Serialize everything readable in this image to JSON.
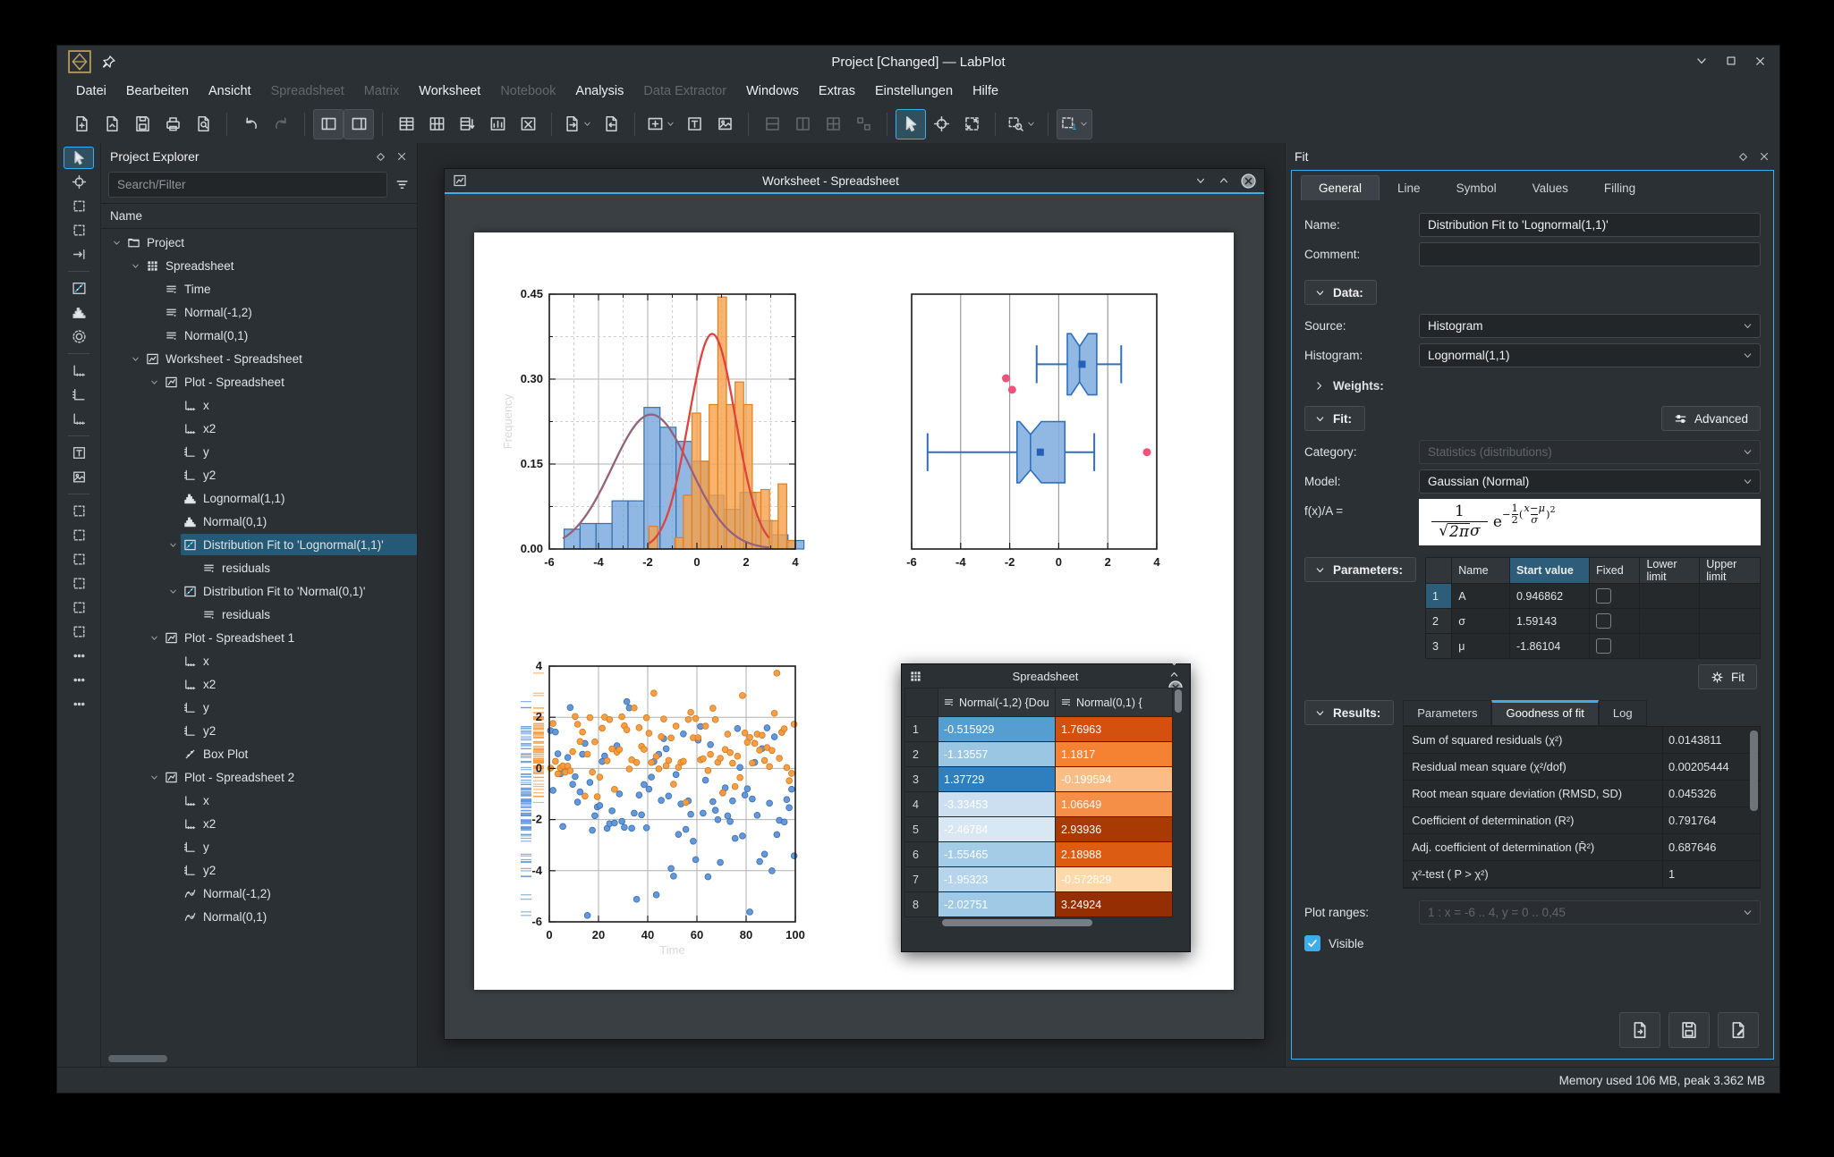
{
  "window": {
    "title": "Project [Changed] — LabPlot"
  },
  "menubar": [
    {
      "label": "Datei",
      "enabled": true
    },
    {
      "label": "Bearbeiten",
      "enabled": true
    },
    {
      "label": "Ansicht",
      "enabled": true
    },
    {
      "label": "Spreadsheet",
      "enabled": false
    },
    {
      "label": "Matrix",
      "enabled": false
    },
    {
      "label": "Worksheet",
      "enabled": true
    },
    {
      "label": "Notebook",
      "enabled": false
    },
    {
      "label": "Analysis",
      "enabled": true
    },
    {
      "label": "Data Extractor",
      "enabled": false
    },
    {
      "label": "Windows",
      "enabled": true
    },
    {
      "label": "Extras",
      "enabled": true
    },
    {
      "label": "Einstellungen",
      "enabled": true
    },
    {
      "label": "Hilfe",
      "enabled": true
    }
  ],
  "toolbar": {
    "groups": [
      [
        {
          "name": "new-project-button",
          "glyph": "doc-new"
        },
        {
          "name": "open-project-button",
          "glyph": "doc-open"
        },
        {
          "name": "save-project-button",
          "glyph": "save"
        },
        {
          "name": "print-button",
          "glyph": "print"
        },
        {
          "name": "print-preview-button",
          "glyph": "preview"
        }
      ],
      [
        {
          "name": "undo-button",
          "glyph": "undo"
        },
        {
          "name": "redo-button",
          "glyph": "redo",
          "disabled": true
        }
      ],
      [
        {
          "name": "toggle-project-explorer-button",
          "glyph": "panel-left",
          "pressed": true
        },
        {
          "name": "toggle-properties-explorer-button",
          "glyph": "panel-right",
          "pressed": true
        }
      ],
      [
        {
          "name": "spreadsheet-insert-row-button",
          "glyph": "table-row"
        },
        {
          "name": "spreadsheet-insert-column-button",
          "glyph": "table-col"
        },
        {
          "name": "spreadsheet-sort-button",
          "glyph": "table-sort"
        },
        {
          "name": "spreadsheet-statistics-button",
          "glyph": "table-stats"
        },
        {
          "name": "spreadsheet-clear-button",
          "glyph": "table-clear"
        }
      ],
      [
        {
          "name": "export-spreadsheet-button",
          "glyph": "doc-export",
          "chevron": true
        },
        {
          "name": "import-data-button",
          "glyph": "doc-import"
        }
      ],
      [
        {
          "name": "new-worksheet-button",
          "glyph": "frame-new",
          "chevron": true
        },
        {
          "name": "worksheet-text-button",
          "glyph": "frame-text"
        },
        {
          "name": "worksheet-image-button",
          "glyph": "frame-image"
        }
      ],
      [
        {
          "name": "layout-vertical-button",
          "glyph": "layout-v",
          "disabled": true
        },
        {
          "name": "layout-horizontal-button",
          "glyph": "layout-h",
          "disabled": true
        },
        {
          "name": "layout-grid-button",
          "glyph": "layout-grid",
          "disabled": true
        },
        {
          "name": "layout-break-button",
          "glyph": "layout-break",
          "disabled": true
        }
      ],
      [
        {
          "name": "select-mode-button",
          "glyph": "cursor",
          "checked": true
        },
        {
          "name": "crosshair-mode-button",
          "glyph": "target"
        },
        {
          "name": "zoom-fit-button",
          "glyph": "zoom-fit"
        }
      ],
      [
        {
          "name": "zoom-select-button",
          "glyph": "zoom-select",
          "chevron": true
        }
      ],
      [
        {
          "name": "magnification-button",
          "glyph": "mag-one",
          "pressed": true,
          "chevron": true
        }
      ]
    ]
  },
  "left_toolbar": [
    {
      "name": "select-tool",
      "glyph": "cursor",
      "checked": true
    },
    {
      "name": "crosshair-tool",
      "glyph": "target"
    },
    {
      "name": "zoom-select-tool",
      "glyph": "dashbox"
    },
    {
      "name": "zoom-x-select-tool",
      "glyph": "dashbox"
    },
    {
      "name": "navigate-tool",
      "glyph": "arrow-io",
      "sep_after": true
    },
    {
      "name": "xy-curve-tool",
      "glyph": "fitc"
    },
    {
      "name": "histogram-tool",
      "glyph": "hist"
    },
    {
      "name": "data-picker-tool",
      "glyph": "target2",
      "sep_after": true
    },
    {
      "name": "axis-bottom-tool",
      "glyph": "axis"
    },
    {
      "name": "axis-left-tool",
      "glyph": "axis-y"
    },
    {
      "name": "axis-custom-tool",
      "glyph": "axis",
      "sep_after": true
    },
    {
      "name": "text-label-tool",
      "glyph": "frame-text"
    },
    {
      "name": "image-tool",
      "glyph": "frame-image",
      "sep_after": true
    },
    {
      "name": "custom-point-tool",
      "glyph": "dashbox"
    },
    {
      "name": "reference-line-tool",
      "glyph": "dashbox"
    },
    {
      "name": "reference-range-tool",
      "glyph": "dashbox"
    },
    {
      "name": "info-element-tool",
      "glyph": "dashbox"
    },
    {
      "name": "shape-tool",
      "glyph": "dashbox"
    },
    {
      "name": "group-tool",
      "glyph": "dashbox"
    },
    {
      "name": "align-tool",
      "glyph": "dots"
    },
    {
      "name": "distribute-tool",
      "glyph": "dots"
    },
    {
      "name": "more-tools",
      "glyph": "dots"
    }
  ],
  "explorer": {
    "title": "Project Explorer",
    "search_placeholder": "Search/Filter",
    "name_header": "Name",
    "tree": [
      {
        "depth": 0,
        "icon": "folder",
        "label": "Project",
        "expandable": true
      },
      {
        "depth": 1,
        "icon": "grid",
        "label": "Spreadsheet",
        "expandable": true
      },
      {
        "depth": 2,
        "icon": "column",
        "label": "Time"
      },
      {
        "depth": 2,
        "icon": "column",
        "label": "Normal(-1,2)"
      },
      {
        "depth": 2,
        "icon": "column",
        "label": "Normal(0,1)"
      },
      {
        "depth": 1,
        "icon": "worksheet",
        "label": "Worksheet - Spreadsheet",
        "expandable": true
      },
      {
        "depth": 2,
        "icon": "plot",
        "label": "Plot - Spreadsheet",
        "expandable": true
      },
      {
        "depth": 3,
        "icon": "axis",
        "label": "x"
      },
      {
        "depth": 3,
        "icon": "axis",
        "label": "x2"
      },
      {
        "depth": 3,
        "icon": "axis-y",
        "label": "y"
      },
      {
        "depth": 3,
        "icon": "axis-y",
        "label": "y2"
      },
      {
        "depth": 3,
        "icon": "hist",
        "label": "Lognormal(1,1)"
      },
      {
        "depth": 3,
        "icon": "hist",
        "label": "Normal(0,1)"
      },
      {
        "depth": 3,
        "icon": "fitc",
        "label": "Distribution Fit to 'Lognormal(1,1)'",
        "expandable": true,
        "selected": true
      },
      {
        "depth": 4,
        "icon": "column",
        "label": "residuals"
      },
      {
        "depth": 3,
        "icon": "fitc",
        "label": "Distribution Fit to 'Normal(0,1)'",
        "expandable": true
      },
      {
        "depth": 4,
        "icon": "column",
        "label": "residuals"
      },
      {
        "depth": 2,
        "icon": "plot",
        "label": "Plot - Spreadsheet 1",
        "expandable": true
      },
      {
        "depth": 3,
        "icon": "axis",
        "label": "x"
      },
      {
        "depth": 3,
        "icon": "axis",
        "label": "x2"
      },
      {
        "depth": 3,
        "icon": "axis-y",
        "label": "y"
      },
      {
        "depth": 3,
        "icon": "axis-y",
        "label": "y2"
      },
      {
        "depth": 3,
        "icon": "diag",
        "label": "Box Plot"
      },
      {
        "depth": 2,
        "icon": "plot",
        "label": "Plot - Spreadsheet 2",
        "expandable": true
      },
      {
        "depth": 3,
        "icon": "axis",
        "label": "x"
      },
      {
        "depth": 3,
        "icon": "axis",
        "label": "x2"
      },
      {
        "depth": 3,
        "icon": "axis-y",
        "label": "y"
      },
      {
        "depth": 3,
        "icon": "axis-y",
        "label": "y2"
      },
      {
        "depth": 3,
        "icon": "curve",
        "label": "Normal(-1,2)"
      },
      {
        "depth": 3,
        "icon": "curve",
        "label": "Normal(0,1)"
      }
    ]
  },
  "worksheet_window": {
    "title": "Worksheet - Spreadsheet"
  },
  "spreadsheet_window": {
    "title": "Spreadsheet",
    "columns": [
      "Normal(-1,2) {Dou",
      "Normal(0,1) {"
    ],
    "rows": [
      {
        "n": "1",
        "v1": "-0.515929",
        "c1": "#569dd1",
        "v2": "1.76963",
        "c2": "#d4500f"
      },
      {
        "n": "2",
        "v1": "-1.13557",
        "c1": "#9ac5e3",
        "v2": "1.1817",
        "c2": "#f58233"
      },
      {
        "n": "3",
        "v1": "1.37729",
        "c1": "#2f7ebd",
        "v2": "-0.199594",
        "c2": "#fbbd85"
      },
      {
        "n": "4",
        "v1": "-3.33453",
        "c1": "#cbdff0",
        "v2": "1.06649",
        "c2": "#f58f47"
      },
      {
        "n": "5",
        "v1": "-2.46784",
        "c1": "#d8e7f4",
        "v2": "2.93936",
        "c2": "#a93a04"
      },
      {
        "n": "6",
        "v1": "-1.55465",
        "c1": "#a5cce7",
        "v2": "2.18988",
        "c2": "#dd5c14"
      },
      {
        "n": "7",
        "v1": "-1.95323",
        "c1": "#b4d5eb",
        "v2": "-0.572829",
        "c2": "#fcd8ab"
      },
      {
        "n": "8",
        "v1": "-2.02751",
        "c1": "#a0c9e5",
        "v2": "3.24924",
        "c2": "#962e03"
      }
    ]
  },
  "fit": {
    "dock_title": "Fit",
    "tabs": [
      "General",
      "Line",
      "Symbol",
      "Values",
      "Filling"
    ],
    "active_tab": "General",
    "name_label": "Name:",
    "name_value": "Distribution Fit to 'Lognormal(1,1)'",
    "comment_label": "Comment:",
    "comment_value": "",
    "data_section": "Data:",
    "source_label": "Source:",
    "source_value": "Histogram",
    "histogram_label": "Histogram:",
    "histogram_value": "Lognormal(1,1)",
    "weights_section": "Weights:",
    "fit_section": "Fit:",
    "advanced_button": "Advanced",
    "category_label": "Category:",
    "category_value": "Statistics (distributions)",
    "model_label": "Model:",
    "model_value": "Gaussian (Normal)",
    "formula_label": "f(x)/A =",
    "formula": {
      "num": "1",
      "root": "2π",
      "sigma": "σ",
      "base": "e",
      "exp_prefix": "−",
      "exp_num": "1",
      "exp_den": "2",
      "inner_num": "x−μ",
      "inner_den": "σ",
      "power": "2"
    },
    "parameters_section": "Parameters:",
    "parameters_table": {
      "headers": [
        "",
        "Name",
        "Start value",
        "Fixed",
        "Lower limit",
        "Upper limit"
      ],
      "rows": [
        {
          "num": "1",
          "name": "A",
          "start": "0.946862"
        },
        {
          "num": "2",
          "name": "σ",
          "start": "1.59143"
        },
        {
          "num": "3",
          "name": "μ",
          "start": "-1.86104"
        }
      ]
    },
    "fit_button": "Fit",
    "results_section": "Results:",
    "results_tabs": [
      "Parameters",
      "Goodness of fit",
      "Log"
    ],
    "active_results_tab": "Goodness of fit",
    "goodness_rows": [
      {
        "label": "Sum of squared residuals (χ²)",
        "value": "0.0143811"
      },
      {
        "label": "Residual mean square (χ²/dof)",
        "value": "0.00205444"
      },
      {
        "label": "Root mean square deviation (RMSD, SD)",
        "value": "0.045326"
      },
      {
        "label": "Coefficient of determination (R²)",
        "value": "0.791764"
      },
      {
        "label": "Adj. coefficient of determination (R̄²)",
        "value": "0.687646"
      },
      {
        "label": "χ²-test ( P > χ²)",
        "value": "1"
      }
    ],
    "plot_ranges_label": "Plot ranges:",
    "plot_ranges_value": "1 : x = -6 .. 4, y = 0 .. 0,45",
    "visible_label": "Visible",
    "visible_checked": true
  },
  "status_bar": {
    "memory": "Memory used 106 MB, peak 3.362 MB"
  },
  "colors": {
    "accent": "#3daee9",
    "selection": "#255a76",
    "hist_blue_fill": "#76a5dc",
    "hist_blue_border": "#3a6ea8",
    "hist_orange_fill": "#f6a14b",
    "hist_orange_border": "#e07f1f",
    "fit_red": "#e0433f",
    "fit_purple": "#96607f",
    "box_fill": "#85afe0",
    "box_border": "#2e6fc0",
    "outlier_pink": "#f0527a"
  },
  "chart_data": [
    {
      "type": "histogram",
      "position": "top-left",
      "xlim": [
        -6,
        4
      ],
      "ylim": [
        0,
        0.45
      ],
      "xticks": [
        -6,
        -4,
        -2,
        0,
        2,
        4
      ],
      "ytick_labels": [
        "0.00",
        "0.15",
        "0.30",
        "0.45"
      ],
      "yticks": [
        0,
        0.15,
        0.3,
        0.45
      ],
      "ylabel": "Frequency",
      "grid": true,
      "series": [
        {
          "name": "Lognormal(1,1)",
          "color": "#76a5dc",
          "border": "#3a6ea8",
          "bin_start": -5.4,
          "bin_width": 0.65,
          "heights": [
            0.035,
            0.045,
            0.045,
            0.085,
            0.085,
            0.25,
            0.215,
            0.19,
            0.155,
            0.095,
            0.07,
            0.1,
            0.05,
            0.025,
            0.015
          ]
        },
        {
          "name": "Normal(0,1)",
          "color": "#f6a14b",
          "border": "#e07f1f",
          "bin_start": -1.95,
          "bin_width": 0.35,
          "heights": [
            0.04,
            0,
            0,
            0.02,
            0.095,
            0.24,
            0.155,
            0.255,
            0.445,
            0.255,
            0.295,
            0.255,
            0.1,
            0.105,
            0.05,
            0.115,
            0.015
          ]
        }
      ],
      "fits": [
        {
          "name": "Distribution Fit to 'Lognormal(1,1)'",
          "color": "#96607f",
          "mu": -1.86,
          "sigma": 1.59,
          "peak": 0.2375,
          "x_range": [
            -5.45,
            3.0
          ]
        },
        {
          "name": "Distribution Fit to 'Normal(0,1)'",
          "color": "#e0433f",
          "mu": 0.62,
          "sigma": 0.95,
          "peak": 0.38,
          "x_range": [
            -1.95,
            2.95
          ]
        }
      ]
    },
    {
      "type": "boxplot",
      "position": "top-right",
      "xlim": [
        -6,
        4
      ],
      "xticks": [
        -6,
        -4,
        -2,
        0,
        2,
        4
      ],
      "grid_x": [
        -4,
        -2,
        0,
        2
      ],
      "series": [
        {
          "name": "Normal(0,1)",
          "center_frac": 0.275,
          "half_height_frac": 0.12,
          "q1": 0.35,
          "q3": 1.55,
          "median": 0.85,
          "mean": 0.95,
          "whisker_min": -0.9,
          "whisker_max": 2.55,
          "outliers": [
            {
              "x": -2.15,
              "y_frac": 0.33
            },
            {
              "x": -1.9,
              "y_frac": 0.375
            }
          ]
        },
        {
          "name": "Normal(-1,2)",
          "center_frac": 0.62,
          "half_height_frac": 0.12,
          "q1": -1.7,
          "q3": 0.25,
          "median": -1.15,
          "mean": -0.75,
          "whisker_min": -5.35,
          "whisker_max": 1.45,
          "outliers": [
            {
              "x": 3.6,
              "y_frac": 0.62
            }
          ]
        }
      ]
    },
    {
      "type": "scatter",
      "position": "bottom-left",
      "xlim": [
        0,
        100
      ],
      "ylim": [
        -6,
        4
      ],
      "xticks": [
        0,
        20,
        40,
        60,
        80,
        100
      ],
      "yticks": [
        4,
        2,
        0,
        -2,
        -4,
        -6
      ],
      "xlabel": "Time",
      "grid": true,
      "rug_marks": true,
      "series": [
        {
          "name": "Normal(-1,2)",
          "color": "#5b92d8",
          "border": "#3a6fb5",
          "n": 100,
          "mean": -1.2,
          "sd": 1.9,
          "seed": 42
        },
        {
          "name": "Normal(0,1)",
          "color": "#f79a3e",
          "border": "#d87a15",
          "n": 100,
          "mean": 0.8,
          "sd": 1.1,
          "seed": 1337
        }
      ]
    }
  ]
}
